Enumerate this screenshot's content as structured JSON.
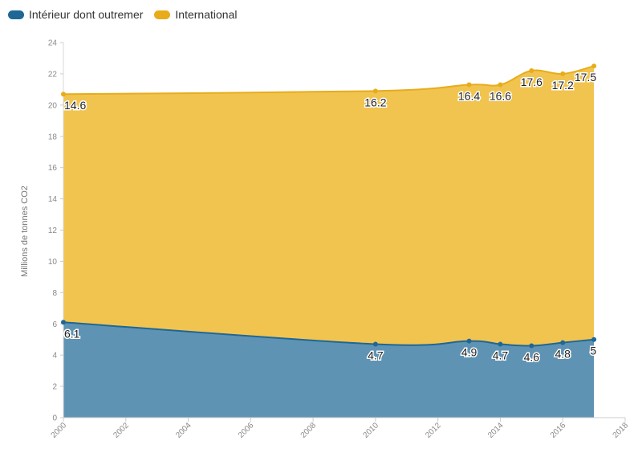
{
  "chart_data": {
    "type": "area",
    "stacked": true,
    "title": "",
    "ylabel": "Millions de tonnes CO2",
    "xlabel": "",
    "x": [
      2000,
      2010,
      2013,
      2014,
      2015,
      2016,
      2017
    ],
    "xlim": [
      2000,
      2018
    ],
    "ylim": [
      0,
      24
    ],
    "xticks": [
      "2000",
      "2002",
      "2004",
      "2006",
      "2008",
      "2010",
      "2012",
      "2014",
      "2016",
      "2018"
    ],
    "yticks": [
      "0",
      "2",
      "4",
      "6",
      "8",
      "10",
      "12",
      "14",
      "16",
      "18",
      "20",
      "22",
      "24"
    ],
    "grid": false,
    "legend_position": "top-left",
    "series": [
      {
        "name": "Intérieur dont outremer",
        "values": [
          6.1,
          4.7,
          4.9,
          4.7,
          4.6,
          4.8,
          5
        ],
        "labels": [
          "6.1",
          "4.7",
          "4.9",
          "4.7",
          "4.6",
          "4.8",
          "5"
        ],
        "color": "#1f6796",
        "fill": "#5f93b4"
      },
      {
        "name": "International",
        "values": [
          14.6,
          16.2,
          16.4,
          16.6,
          17.6,
          17.2,
          17.5
        ],
        "labels": [
          "14.6",
          "16.2",
          "16.4",
          "16.6",
          "17.6",
          "17.2",
          "17.5"
        ],
        "color": "#e8ac1a",
        "fill": "#f1c450"
      }
    ]
  }
}
